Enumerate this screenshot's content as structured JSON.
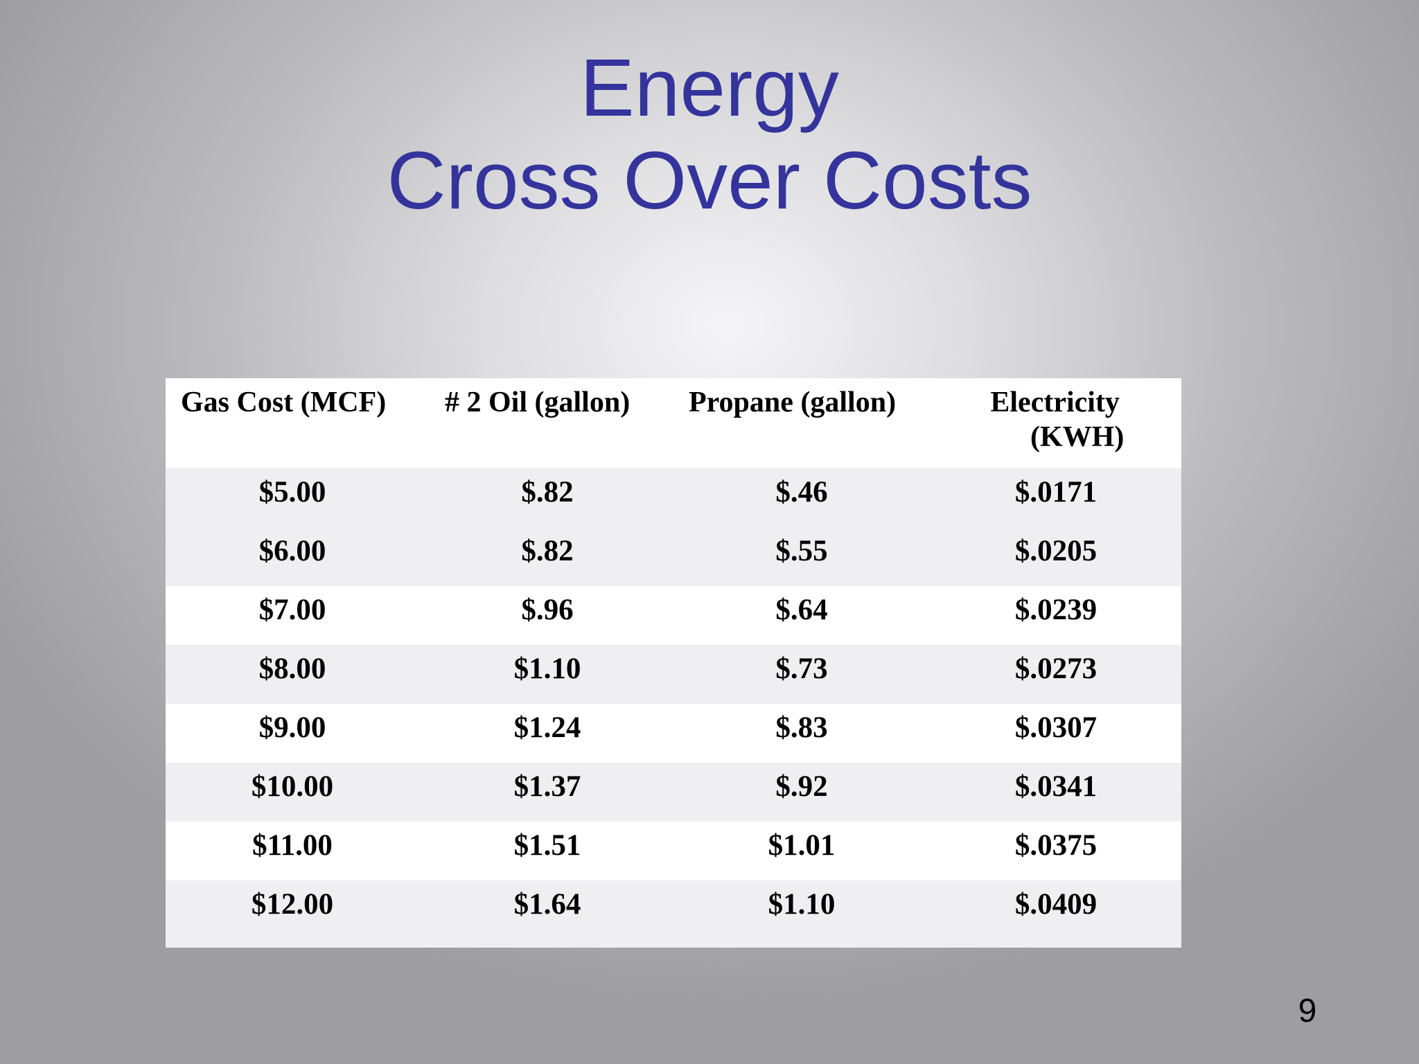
{
  "slide": {
    "title_line1": "Energy",
    "title_line2": "Cross Over Costs",
    "page_number": "9"
  },
  "table": {
    "headers": [
      "Gas Cost (MCF)",
      "# 2 Oil (gallon)",
      "Propane (gallon)",
      "Electricity",
      "(KWH)"
    ],
    "rows": [
      [
        "$5.00",
        "$.82",
        "$.46",
        "$.0171"
      ],
      [
        "$6.00",
        "$.82",
        "$.55",
        "$.0205"
      ],
      [
        "$7.00",
        "$.96",
        "$.64",
        "$.0239"
      ],
      [
        "$8.00",
        "$1.10",
        "$.73",
        "$.0273"
      ],
      [
        "$9.00",
        "$1.24",
        "$.83",
        "$.0307"
      ],
      [
        "$10.00",
        "$1.37",
        "$.92",
        "$.0341"
      ],
      [
        "$11.00",
        "$1.51",
        "$1.01",
        "$.0375"
      ],
      [
        "$12.00",
        "$1.64",
        "$1.10",
        "$.0409"
      ]
    ]
  },
  "colors": {
    "title": "#34349c",
    "text": "#000000",
    "row_shaded": "#efeff2",
    "row_white": "#ffffff"
  }
}
